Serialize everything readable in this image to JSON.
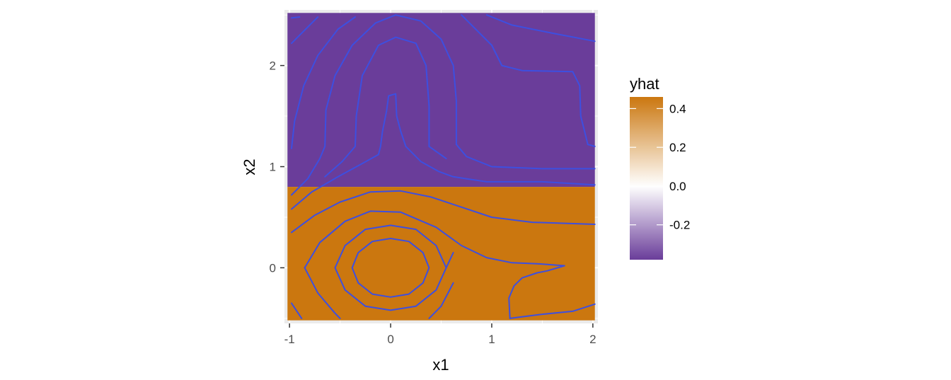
{
  "chart_data": {
    "type": "heatmap",
    "xlabel": "x1",
    "ylabel": "x2",
    "xlim": [
      -1.05,
      2.05
    ],
    "ylim": [
      -0.55,
      2.55
    ],
    "x_ticks": [
      -1,
      0,
      1,
      2
    ],
    "x_tick_labels": [
      "-1",
      "0",
      "1",
      "2"
    ],
    "y_ticks": [
      0,
      1,
      2
    ],
    "y_tick_labels": [
      "0",
      "1",
      "2"
    ],
    "grid": true,
    "fill_regions": [
      {
        "x_range": [
          -1.05,
          2.05
        ],
        "y_range": [
          0.8,
          2.55
        ],
        "value": -0.38
      },
      {
        "x_range": [
          -1.05,
          2.05
        ],
        "y_range": [
          -0.55,
          0.8
        ],
        "value": 0.46
      }
    ],
    "contour_color": "#3d4fe0",
    "contours": [
      [
        [
          -0.98,
          2.47
        ],
        [
          -0.9,
          2.48
        ]
      ],
      [
        [
          -0.98,
          2.22
        ],
        [
          -0.86,
          2.34
        ],
        [
          -0.72,
          2.48
        ]
      ],
      [
        [
          -0.98,
          1.18
        ],
        [
          -0.95,
          1.45
        ],
        [
          -0.86,
          1.8
        ],
        [
          -0.72,
          2.1
        ],
        [
          -0.52,
          2.36
        ],
        [
          -0.35,
          2.48
        ]
      ],
      [
        [
          -0.65,
          1.2
        ],
        [
          -0.64,
          1.56
        ],
        [
          -0.55,
          1.9
        ],
        [
          -0.38,
          2.2
        ],
        [
          -0.15,
          2.42
        ],
        [
          0.05,
          2.5
        ],
        [
          0.3,
          2.44
        ],
        [
          0.5,
          2.26
        ],
        [
          0.62,
          2.0
        ],
        [
          0.65,
          1.65
        ],
        [
          0.65,
          1.22
        ]
      ],
      [
        [
          -0.35,
          1.2
        ],
        [
          -0.34,
          1.5
        ],
        [
          -0.28,
          1.9
        ],
        [
          -0.12,
          2.2
        ],
        [
          0.05,
          2.28
        ],
        [
          0.25,
          2.22
        ],
        [
          0.35,
          2.0
        ],
        [
          0.38,
          1.6
        ],
        [
          0.38,
          1.2
        ]
      ],
      [
        [
          -0.1,
          1.2
        ],
        [
          -0.08,
          1.35
        ],
        [
          -0.04,
          1.55
        ],
        [
          -0.02,
          1.7
        ],
        [
          0.05,
          1.72
        ],
        [
          0.06,
          1.5
        ],
        [
          0.1,
          1.35
        ],
        [
          0.15,
          1.2
        ]
      ],
      [
        [
          -0.98,
          0.58
        ],
        [
          -0.78,
          0.75
        ],
        [
          -0.52,
          0.9
        ],
        [
          -0.3,
          1.02
        ],
        [
          -0.12,
          1.12
        ],
        [
          -0.1,
          1.2
        ]
      ],
      [
        [
          0.15,
          1.2
        ],
        [
          0.3,
          1.05
        ],
        [
          0.48,
          0.95
        ],
        [
          0.62,
          0.9
        ],
        [
          0.75,
          0.88
        ],
        [
          0.95,
          0.85
        ],
        [
          1.5,
          0.85
        ],
        [
          2.02,
          0.82
        ]
      ],
      [
        [
          -0.65,
          1.2
        ],
        [
          -0.7,
          1.08
        ],
        [
          -0.82,
          0.88
        ],
        [
          -0.98,
          0.72
        ]
      ],
      [
        [
          -0.35,
          1.2
        ],
        [
          -0.48,
          1.05
        ],
        [
          -0.65,
          0.9
        ]
      ],
      [
        [
          0.65,
          1.22
        ],
        [
          0.75,
          1.1
        ],
        [
          1.0,
          1.0
        ],
        [
          1.5,
          0.98
        ],
        [
          2.02,
          0.98
        ]
      ],
      [
        [
          0.38,
          1.2
        ],
        [
          0.55,
          1.08
        ]
      ],
      [
        [
          0.7,
          2.5
        ],
        [
          1.0,
          2.2
        ],
        [
          1.1,
          2.0
        ],
        [
          1.3,
          1.95
        ],
        [
          1.8,
          1.94
        ],
        [
          1.87,
          1.8
        ],
        [
          1.88,
          1.5
        ],
        [
          1.93,
          1.3
        ],
        [
          1.95,
          1.22
        ],
        [
          2.02,
          1.2
        ]
      ],
      [
        [
          0.95,
          2.5
        ],
        [
          1.2,
          2.4
        ],
        [
          1.6,
          2.32
        ],
        [
          2.02,
          2.24
        ]
      ],
      [
        [
          -0.98,
          0.35
        ],
        [
          -0.75,
          0.52
        ],
        [
          -0.5,
          0.65
        ],
        [
          -0.2,
          0.75
        ],
        [
          0.1,
          0.76
        ],
        [
          0.4,
          0.7
        ],
        [
          0.7,
          0.6
        ],
        [
          1.0,
          0.5
        ],
        [
          1.4,
          0.45
        ],
        [
          2.02,
          0.43
        ]
      ],
      [
        [
          -0.98,
          -0.35
        ],
        [
          -0.88,
          -0.5
        ]
      ],
      [
        [
          -0.85,
          0.0
        ],
        [
          -0.7,
          0.25
        ],
        [
          -0.45,
          0.46
        ],
        [
          -0.2,
          0.56
        ],
        [
          0.1,
          0.55
        ],
        [
          0.45,
          0.4
        ],
        [
          0.7,
          0.22
        ],
        [
          0.95,
          0.1
        ],
        [
          1.2,
          0.05
        ],
        [
          1.45,
          0.04
        ],
        [
          1.72,
          0.02
        ],
        [
          1.55,
          -0.03
        ],
        [
          1.45,
          -0.05
        ],
        [
          1.3,
          -0.1
        ],
        [
          1.22,
          -0.18
        ],
        [
          1.17,
          -0.3
        ],
        [
          1.18,
          -0.5
        ]
      ],
      [
        [
          -0.85,
          0.0
        ],
        [
          -0.72,
          -0.25
        ],
        [
          -0.55,
          -0.45
        ],
        [
          -0.5,
          -0.5
        ]
      ],
      [
        [
          -0.55,
          0.0
        ],
        [
          -0.45,
          0.22
        ],
        [
          -0.25,
          0.38
        ],
        [
          0.0,
          0.42
        ],
        [
          0.25,
          0.38
        ],
        [
          0.45,
          0.22
        ],
        [
          0.55,
          0.0
        ],
        [
          0.45,
          -0.22
        ],
        [
          0.25,
          -0.38
        ],
        [
          0.0,
          -0.42
        ],
        [
          -0.25,
          -0.38
        ],
        [
          -0.45,
          -0.22
        ],
        [
          -0.55,
          0.0
        ]
      ],
      [
        [
          -0.38,
          0.0
        ],
        [
          -0.32,
          0.15
        ],
        [
          -0.18,
          0.26
        ],
        [
          0.0,
          0.29
        ],
        [
          0.18,
          0.26
        ],
        [
          0.32,
          0.15
        ],
        [
          0.38,
          0.0
        ],
        [
          0.32,
          -0.15
        ],
        [
          0.18,
          -0.26
        ],
        [
          0.0,
          -0.29
        ],
        [
          -0.18,
          -0.26
        ],
        [
          -0.32,
          -0.15
        ],
        [
          -0.38,
          0.0
        ]
      ],
      [
        [
          0.55,
          0.0
        ],
        [
          0.62,
          0.15
        ]
      ],
      [
        [
          0.62,
          -0.15
        ],
        [
          0.5,
          -0.38
        ],
        [
          0.38,
          -0.5
        ]
      ],
      [
        [
          1.18,
          -0.5
        ],
        [
          1.5,
          -0.46
        ],
        [
          1.8,
          -0.43
        ],
        [
          2.02,
          -0.36
        ]
      ]
    ],
    "legend": {
      "title": "yhat",
      "position": "right",
      "range": [
        -0.38,
        0.46
      ],
      "tick_values": [
        0.4,
        0.2,
        0.0,
        -0.2
      ],
      "tick_labels": [
        "0.4",
        "0.2",
        "0.0",
        "-0.2"
      ],
      "colors": {
        "low": "#6a3d9a",
        "mid": "#ffffff",
        "high": "#cb770f"
      }
    },
    "panel_bg": "#ebebeb",
    "grid_color": "#ffffff"
  }
}
